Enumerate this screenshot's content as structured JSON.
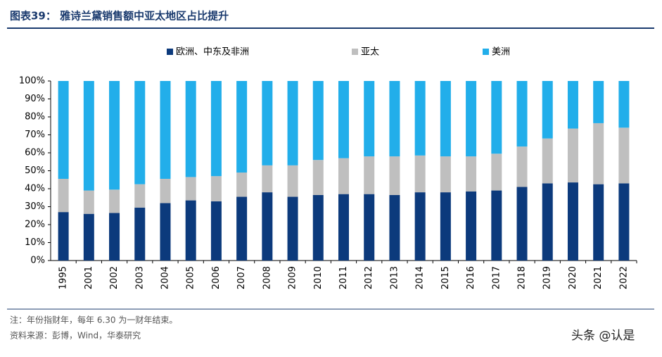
{
  "header": {
    "title": "图表39： 雅诗兰黛销售额中亚太地区占比提升"
  },
  "chart_data": {
    "type": "stacked-bar",
    "categories": [
      "1995",
      "2001",
      "2002",
      "2003",
      "2004",
      "2005",
      "2006",
      "2007",
      "2008",
      "2009",
      "2010",
      "2011",
      "2012",
      "2013",
      "2014",
      "2015",
      "2016",
      "2017",
      "2018",
      "2019",
      "2020",
      "2021",
      "2022"
    ],
    "series": [
      {
        "name": "欧洲、中东及非洲",
        "color": "#0c3a7c",
        "values": [
          27,
          26,
          26.5,
          29.5,
          32,
          33.5,
          33,
          35.5,
          38,
          35.5,
          36.5,
          37,
          37,
          36.5,
          38,
          38,
          38.5,
          39,
          41,
          43,
          43.5,
          42.5,
          43
        ]
      },
      {
        "name": "亚太",
        "color": "#bfbfbf",
        "values": [
          18.5,
          13,
          13,
          13,
          13.5,
          13,
          14,
          13.5,
          15,
          17.5,
          19.5,
          20,
          21,
          21.5,
          20.5,
          20,
          19.5,
          20.5,
          22.5,
          25,
          30,
          34,
          31
        ]
      },
      {
        "name": "美洲",
        "color": "#22aeea",
        "values": [
          54.5,
          61,
          60.5,
          57.5,
          54.5,
          53.5,
          53,
          51,
          47,
          47,
          44,
          43,
          42,
          42,
          41.5,
          42,
          42,
          40.5,
          36.5,
          32,
          26.5,
          23.5,
          26
        ]
      }
    ],
    "ylim": [
      0,
      100
    ],
    "yticks": [
      {
        "value": 0,
        "label": "0%"
      },
      {
        "value": 10,
        "label": "10%"
      },
      {
        "value": 20,
        "label": "20%"
      },
      {
        "value": 30,
        "label": "30%"
      },
      {
        "value": 40,
        "label": "40%"
      },
      {
        "value": 50,
        "label": "50%"
      },
      {
        "value": 60,
        "label": "60%"
      },
      {
        "value": 70,
        "label": "70%"
      },
      {
        "value": 80,
        "label": "80%"
      },
      {
        "value": 90,
        "label": "90%"
      },
      {
        "value": 100,
        "label": "100%"
      }
    ],
    "legend": "top"
  },
  "footer": {
    "notes": [
      "注：年份指财年，每年 6.30 为一财年结束。",
      "资料来源：彭博，Wind，华泰研究"
    ],
    "watermark": "头条 @认是"
  }
}
